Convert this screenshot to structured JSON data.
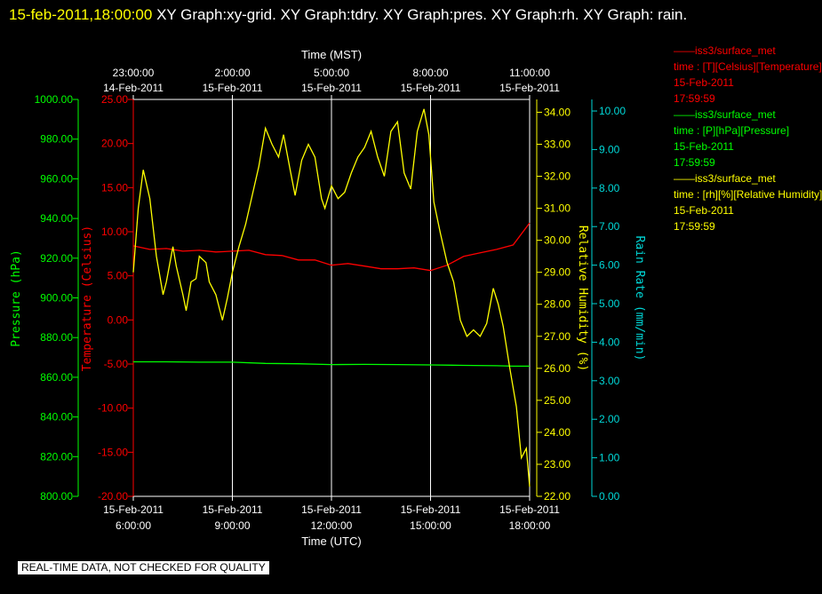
{
  "header": {
    "timestamp": "15-feb-2011,18:00:00",
    "titles": "XY Graph:xy-grid.  XY Graph:tdry.  XY Graph:pres.  XY Graph:rh.  XY Graph: rain."
  },
  "disclaimer": "REAL-TIME DATA, NOT CHECKED FOR QUALITY",
  "colors": {
    "temperature": "#ff0000",
    "pressure": "#00ff00",
    "humidity": "#ffff00",
    "rain": "#00d8d8",
    "grid": "#ffffff"
  },
  "legend": [
    {
      "line1": "——iss3/surface_met",
      "line2": "time : [T][Celsius][Temperature]",
      "line3": "15-Feb-2011",
      "line4": "17:59:59",
      "color": "#ff0000"
    },
    {
      "line1": "——iss3/surface_met",
      "line2": "time : [P][hPa][Pressure]",
      "line3": "15-Feb-2011",
      "line4": "17:59:59",
      "color": "#00ff00"
    },
    {
      "line1": "——iss3/surface_met",
      "line2": "time : [rh][%][Relative Humidity]",
      "line3": "15-Feb-2011",
      "line4": "17:59:59",
      "color": "#ffff00"
    }
  ],
  "chart_data": {
    "type": "line",
    "x_top": {
      "label": "Time (MST)",
      "ticks": [
        {
          "t": "23:00:00",
          "d": "14-Feb-2011"
        },
        {
          "t": "2:00:00",
          "d": "15-Feb-2011"
        },
        {
          "t": "5:00:00",
          "d": "15-Feb-2011"
        },
        {
          "t": "8:00:00",
          "d": "15-Feb-2011"
        },
        {
          "t": "11:00:00",
          "d": "15-Feb-2011"
        }
      ]
    },
    "x_bottom": {
      "label": "Time (UTC)",
      "ticks": [
        {
          "t": "6:00:00",
          "d": "15-Feb-2011"
        },
        {
          "t": "9:00:00",
          "d": "15-Feb-2011"
        },
        {
          "t": "12:00:00",
          "d": "15-Feb-2011"
        },
        {
          "t": "15:00:00",
          "d": "15-Feb-2011"
        },
        {
          "t": "18:00:00",
          "d": "15-Feb-2011"
        }
      ]
    },
    "xlim_hours_utc": [
      6,
      18
    ],
    "axes": {
      "pressure": {
        "label": "Pressure (hPa)",
        "ylim": [
          800,
          1000
        ],
        "ticks": [
          "800.00",
          "820.00",
          "840.00",
          "860.00",
          "880.00",
          "900.00",
          "920.00",
          "940.00",
          "960.00",
          "980.00",
          "1000.00"
        ]
      },
      "temperature": {
        "label": "Temperature (Celsius)",
        "ylim": [
          -20,
          25
        ],
        "ticks": [
          "-20.00",
          "-15.00",
          "-10.00",
          "-5.00",
          "0.00",
          "5.00",
          "10.00",
          "15.00",
          "20.00",
          "25.00"
        ]
      },
      "humidity": {
        "label": "Relative Humidity (%)",
        "ylim": [
          22,
          34.4
        ],
        "ticks": [
          "22.00",
          "23.00",
          "24.00",
          "25.00",
          "26.00",
          "27.00",
          "28.00",
          "29.00",
          "30.00",
          "31.00",
          "32.00",
          "33.00",
          "34.00"
        ]
      },
      "rain": {
        "label": "Rain Rate (mm/min)",
        "ylim": [
          0,
          10.3
        ],
        "ticks": [
          "0.00",
          "1.00",
          "2.00",
          "3.00",
          "4.00",
          "5.00",
          "6.00",
          "7.00",
          "8.00",
          "9.00",
          "10.00"
        ]
      }
    },
    "series": [
      {
        "name": "iss3/surface_met time : [T][Celsius][Temperature]",
        "axis": "temperature",
        "x": [
          6.0,
          6.5,
          7.0,
          7.5,
          8.0,
          8.5,
          9.0,
          9.5,
          10.0,
          10.5,
          11.0,
          11.5,
          12.0,
          12.5,
          13.0,
          13.5,
          14.0,
          14.5,
          15.0,
          15.5,
          16.0,
          16.5,
          17.0,
          17.5,
          18.0
        ],
        "y": [
          8.4,
          8.0,
          8.1,
          7.8,
          7.9,
          7.7,
          7.8,
          7.9,
          7.4,
          7.3,
          6.8,
          6.8,
          6.2,
          6.4,
          6.1,
          5.8,
          5.8,
          5.9,
          5.6,
          6.2,
          7.2,
          7.6,
          8.0,
          8.5,
          11.0
        ]
      },
      {
        "name": "iss3/surface_met time : [P][hPa][Pressure]",
        "axis": "pressure",
        "x": [
          6.0,
          7.0,
          8.0,
          9.0,
          10.0,
          11.0,
          12.0,
          13.0,
          14.0,
          15.0,
          16.0,
          17.0,
          17.5,
          18.0
        ],
        "y": [
          867.8,
          867.8,
          867.6,
          867.6,
          867.0,
          866.8,
          866.4,
          866.5,
          866.4,
          866.2,
          866.0,
          865.8,
          865.6,
          865.6
        ]
      },
      {
        "name": "iss3/surface_met time : [rh][%][Relative Humidity]",
        "axis": "humidity",
        "x": [
          6.0,
          6.15,
          6.3,
          6.5,
          6.7,
          6.9,
          7.0,
          7.2,
          7.3,
          7.5,
          7.6,
          7.75,
          7.9,
          8.0,
          8.2,
          8.3,
          8.5,
          8.7,
          8.85,
          9.0,
          9.2,
          9.4,
          9.6,
          9.8,
          10.0,
          10.2,
          10.4,
          10.55,
          10.75,
          10.9,
          11.1,
          11.3,
          11.5,
          11.7,
          11.8,
          12.0,
          12.2,
          12.4,
          12.6,
          12.8,
          13.0,
          13.2,
          13.4,
          13.6,
          13.8,
          14.0,
          14.2,
          14.4,
          14.6,
          14.8,
          14.95,
          15.1,
          15.3,
          15.5,
          15.7,
          15.9,
          16.1,
          16.3,
          16.5,
          16.7,
          16.9,
          17.05,
          17.2,
          17.4,
          17.6,
          17.75,
          17.9,
          18.0
        ],
        "y": [
          29.0,
          31.0,
          32.2,
          31.3,
          29.5,
          28.3,
          28.7,
          29.8,
          29.2,
          28.3,
          27.8,
          28.7,
          28.8,
          29.5,
          29.3,
          28.7,
          28.3,
          27.5,
          28.2,
          29.0,
          29.8,
          30.5,
          31.4,
          32.3,
          33.5,
          33.0,
          32.6,
          33.3,
          32.2,
          31.4,
          32.5,
          33.0,
          32.6,
          31.3,
          31.0,
          31.7,
          31.3,
          31.5,
          32.1,
          32.6,
          32.9,
          33.4,
          32.6,
          32.0,
          33.4,
          33.7,
          32.1,
          31.6,
          33.4,
          34.1,
          33.3,
          31.2,
          30.2,
          29.3,
          28.7,
          27.5,
          27.0,
          27.2,
          27.0,
          27.4,
          28.5,
          28.0,
          27.3,
          26.0,
          24.8,
          23.2,
          23.5,
          22.3
        ]
      }
    ]
  }
}
